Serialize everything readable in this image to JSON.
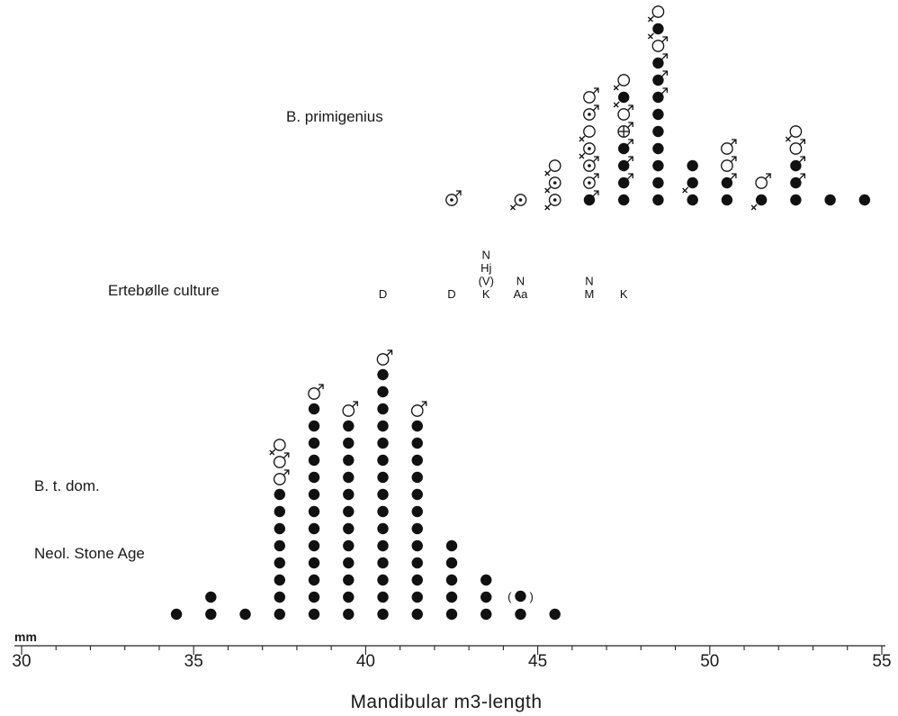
{
  "chart_data": {
    "type": "scatter",
    "xlabel": "Mandibular m3-length",
    "unit": "mm",
    "xlim": [
      30,
      55
    ],
    "xticks": [
      "30",
      "35",
      "40",
      "45",
      "50",
      "55"
    ],
    "groups": [
      {
        "label": "B. primigenius",
        "stacks": [
          {
            "x": 42.5,
            "symbols": [
              "male-dot"
            ]
          },
          {
            "x": 44.5,
            "symbols": [
              "female-dot"
            ]
          },
          {
            "x": 45.5,
            "symbols": [
              "female-dot",
              "female-dot",
              "female"
            ]
          },
          {
            "x": 46.5,
            "symbols": [
              "filled-male",
              "male-dot",
              "male-dot",
              "female-dot",
              "female",
              "male-dot",
              "male"
            ]
          },
          {
            "x": 47.5,
            "symbols": [
              "filled",
              "filled-male",
              "filled-male",
              "filled-male",
              "male-cross",
              "male",
              "filled-female",
              "female"
            ]
          },
          {
            "x": 48.5,
            "symbols": [
              "filled",
              "filled",
              "filled",
              "filled",
              "filled",
              "filled",
              "filled-male",
              "filled-male",
              "filled-male",
              "male",
              "filled-female",
              "female"
            ]
          },
          {
            "x": 49.5,
            "symbols": [
              "filled",
              "filled-female",
              "filled"
            ]
          },
          {
            "x": 50.5,
            "symbols": [
              "filled",
              "filled-male",
              "male",
              "male"
            ]
          },
          {
            "x": 51.5,
            "symbols": [
              "filled-female",
              "male"
            ]
          },
          {
            "x": 52.5,
            "symbols": [
              "filled",
              "filled-male",
              "filled-male",
              "male",
              "female"
            ]
          },
          {
            "x": 53.5,
            "symbols": [
              "filled"
            ]
          },
          {
            "x": 54.5,
            "symbols": [
              "filled"
            ]
          }
        ]
      },
      {
        "label": "Ertebølle culture",
        "stacks": [
          {
            "x": 40.5,
            "sites": [
              "D"
            ]
          },
          {
            "x": 42.5,
            "sites": [
              "D"
            ]
          },
          {
            "x": 43.5,
            "sites": [
              "K",
              "(V)",
              "Hj",
              "N"
            ]
          },
          {
            "x": 44.5,
            "sites": [
              "Aa",
              "N"
            ]
          },
          {
            "x": 46.5,
            "sites": [
              "M",
              "N"
            ]
          },
          {
            "x": 47.5,
            "sites": [
              "K"
            ]
          }
        ]
      },
      {
        "label": "B. t. dom.",
        "sublabel": "Neol. Stone Age",
        "stacks": [
          {
            "x": 34.5,
            "count": 1,
            "top": []
          },
          {
            "x": 35.5,
            "count": 2,
            "top": []
          },
          {
            "x": 36.5,
            "count": 1,
            "top": []
          },
          {
            "x": 37.5,
            "count": 8,
            "top": [
              "male",
              "male",
              "female"
            ]
          },
          {
            "x": 38.5,
            "count": 13,
            "top": [
              "male"
            ]
          },
          {
            "x": 39.5,
            "count": 12,
            "top": [
              "male"
            ]
          },
          {
            "x": 40.5,
            "count": 15,
            "top": [
              "male"
            ]
          },
          {
            "x": 41.5,
            "count": 12,
            "top": [
              "male"
            ]
          },
          {
            "x": 42.5,
            "count": 5,
            "top": []
          },
          {
            "x": 43.5,
            "count": 3,
            "top": []
          },
          {
            "x": 44.5,
            "count": 1,
            "top": [],
            "extra": "(●)"
          },
          {
            "x": 45.5,
            "count": 1,
            "top": []
          }
        ]
      }
    ]
  }
}
